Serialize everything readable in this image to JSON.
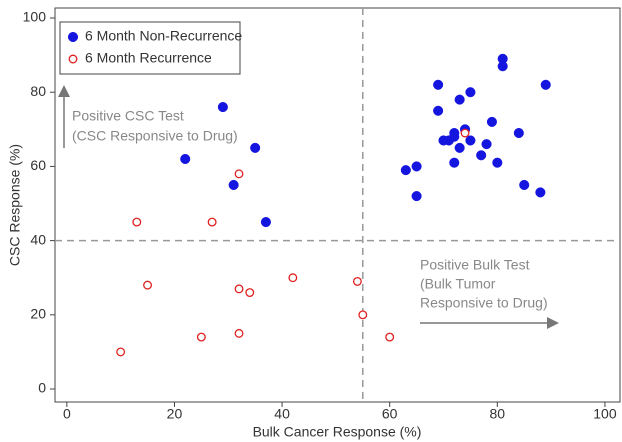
{
  "chart_data": {
    "type": "scatter",
    "x_label": "Bulk Cancer Response (%)",
    "y_label": "CSC Response (%)",
    "xlim": [
      -2.2,
      102.8
    ],
    "ylim": [
      -3.5,
      102.7
    ],
    "xticks": [
      0,
      20,
      40,
      60,
      80,
      100
    ],
    "yticks": [
      0,
      20,
      40,
      60,
      80,
      100
    ],
    "reference_lines": {
      "x": 55,
      "y": 40,
      "color": "#999999"
    },
    "legend": "top-left",
    "series": [
      {
        "name": "6 Month Non-Recurrence",
        "color": "#1515e0",
        "marker": "filled",
        "x": [
          22,
          29,
          35,
          31,
          37,
          69,
          75,
          81,
          81,
          89,
          73,
          69,
          79,
          74,
          72,
          71,
          70,
          73,
          75,
          78,
          77,
          80,
          72,
          65,
          63,
          65,
          84,
          85,
          88,
          72
        ],
        "values": [
          62,
          76,
          65,
          55,
          45,
          82,
          80,
          89,
          87,
          82,
          78,
          75,
          72,
          70,
          69,
          67,
          67,
          65,
          67,
          66,
          63,
          61,
          61,
          60,
          59,
          52,
          69,
          55,
          53,
          68
        ]
      },
      {
        "name": "6 Month Recurrence",
        "color": "#e02020",
        "marker": "open",
        "x": [
          13,
          27,
          32,
          15,
          10,
          25,
          32,
          32,
          34,
          42,
          54,
          55,
          60,
          74
        ],
        "values": [
          45,
          45,
          58,
          28,
          10,
          14,
          15,
          27,
          26,
          30,
          29,
          20,
          14,
          69
        ]
      }
    ],
    "annotations": [
      {
        "lines": [
          "Positive CSC Test",
          "(CSC Responsive to Drug)"
        ]
      },
      {
        "lines": [
          "Positive Bulk Test",
          "(Bulk Tumor",
          "Responsive to Drug)"
        ]
      }
    ]
  }
}
